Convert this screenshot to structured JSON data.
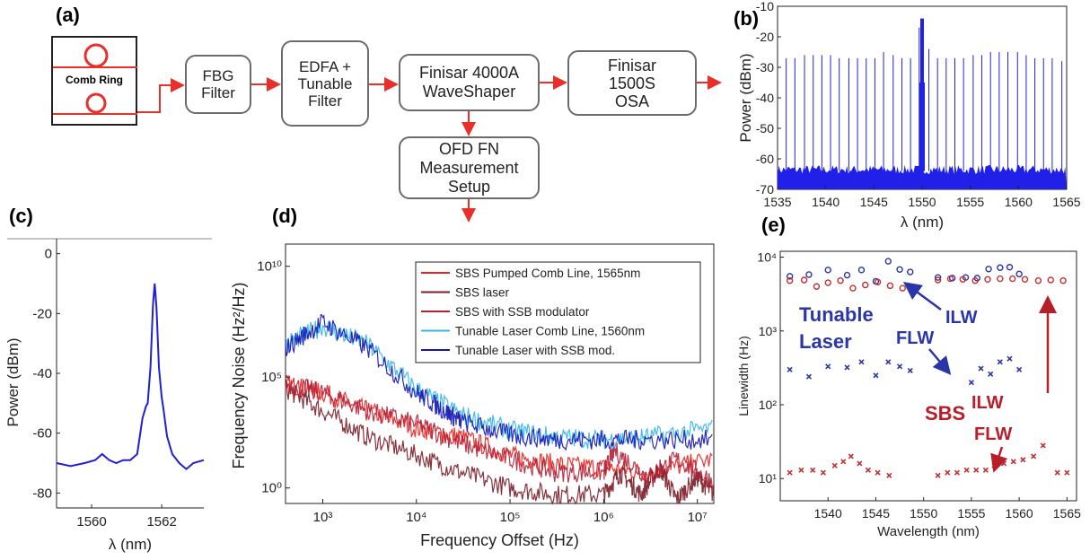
{
  "panel_labels": {
    "a": "(a)",
    "b": "(b)",
    "c": "(c)",
    "d": "(d)",
    "e": "(e)"
  },
  "diagram": {
    "comb_ring": "Comb Ring",
    "fbg": "FBG\nFilter",
    "edfa": "EDFA +\nTunable\nFilter",
    "waveshaper": "Finisar 4000A\nWaveShaper",
    "osa": "Finisar\n1500S\nOSA",
    "ofd": "OFD FN\nMeasurement\nSetup",
    "colors": {
      "arrow": "#e8302a",
      "ring": "#e8302a",
      "border": "#6b6b6b"
    }
  },
  "chart_data": [
    {
      "id": "b",
      "type": "line",
      "xlabel": "λ (nm)",
      "ylabel": "Power (dBm)",
      "xlim": [
        1535,
        1565
      ],
      "ylim": [
        -70,
        -10
      ],
      "xticks": [
        1535,
        1540,
        1545,
        1550,
        1555,
        1560,
        1565
      ],
      "yticks": [
        -70,
        -60,
        -50,
        -40,
        -30,
        -20,
        -10
      ],
      "noise_floor": -64,
      "center_line": {
        "x": 1550,
        "y": -14
      },
      "comb_lines_x": [
        1535.9,
        1536.8,
        1537.8,
        1538.7,
        1539.6,
        1540.5,
        1541.4,
        1542.4,
        1543.3,
        1544.2,
        1545.1,
        1546.0,
        1547.0,
        1547.9,
        1548.8,
        1549.7,
        1550.7,
        1551.6,
        1552.5,
        1553.4,
        1554.3,
        1555.3,
        1556.2,
        1557.1,
        1558.0,
        1558.9,
        1559.9,
        1560.8,
        1561.7,
        1562.6,
        1563.5,
        1564.5
      ],
      "comb_lines_y": [
        -27,
        -27,
        -26,
        -26,
        -26,
        -26,
        -27,
        -27,
        -27,
        -27,
        -27,
        -25,
        -26,
        -27,
        -27,
        -17,
        -24,
        -27,
        -27,
        -27,
        -27,
        -26,
        -26,
        -25,
        -25,
        -25,
        -25,
        -26,
        -27,
        -27,
        -27,
        -28
      ],
      "color": "#2020e8"
    },
    {
      "id": "c",
      "type": "line",
      "xlabel": "λ (nm)",
      "ylabel": "Power (dBm)",
      "xlim": [
        1559,
        1563.2
      ],
      "ylim": [
        -85,
        5
      ],
      "xticks": [
        1560,
        1562
      ],
      "yticks": [
        0,
        -20,
        -40,
        -60,
        -80
      ],
      "x": [
        1559.0,
        1559.4,
        1559.8,
        1560.1,
        1560.3,
        1560.5,
        1560.7,
        1560.9,
        1561.1,
        1561.3,
        1561.45,
        1561.55,
        1561.6,
        1561.68,
        1561.75,
        1561.8,
        1561.85,
        1561.92,
        1562.0,
        1562.05,
        1562.15,
        1562.3,
        1562.5,
        1562.7,
        1562.9,
        1563.2
      ],
      "y": [
        -70,
        -71,
        -70,
        -69,
        -67,
        -69,
        -70,
        -69,
        -69,
        -67,
        -55,
        -51,
        -50,
        -38,
        -17,
        -10,
        -18,
        -38,
        -48,
        -52,
        -61,
        -67,
        -70,
        -72,
        -70,
        -69
      ],
      "color": "#1f1fd6"
    },
    {
      "id": "d",
      "type": "line",
      "xlabel": "Frequency Offset (Hz)",
      "ylabel": "Frequency Noise (Hz²/Hz)",
      "xscale": "log",
      "yscale": "log",
      "xlim": [
        400,
        15000000
      ],
      "ylim": [
        0.2,
        100000000000.0
      ],
      "xticks": [
        "10³",
        "10⁴",
        "10⁵",
        "10⁶",
        "10⁷"
      ],
      "yticks": [
        "10⁰",
        "10⁵",
        "10¹⁰"
      ],
      "legend": "top-right",
      "series": [
        {
          "name": "SBS Pumped Comb Line, 1565nm",
          "color": "#e8201e",
          "x": [
            400,
            1000,
            3000,
            10000,
            30000,
            100000,
            300000,
            1000000,
            3000000,
            15000000
          ],
          "y": [
            50000,
            20000,
            3000,
            500,
            200,
            30,
            12,
            8,
            5,
            20
          ]
        },
        {
          "name": "SBS laser",
          "color": "#7a1c28",
          "x": [
            400,
            1000,
            3000,
            10000,
            30000,
            100000,
            300000,
            1000000,
            1500000,
            2500000,
            4000000,
            6000000,
            10000000,
            15000000
          ],
          "y": [
            30000,
            3000,
            200,
            30,
            5,
            1,
            0.5,
            0.5,
            5,
            0.5,
            8,
            0.3,
            3,
            0.5
          ]
        },
        {
          "name": "SBS with SSB modulator",
          "color": "#b22035",
          "x": [
            400,
            1000,
            3000,
            10000,
            30000,
            100000,
            300000,
            1000000,
            1300000,
            3000000,
            6000000,
            15000000
          ],
          "y": [
            50000,
            20000,
            3000,
            800,
            100,
            20,
            5,
            5,
            50,
            3,
            20,
            2
          ]
        },
        {
          "name": "Tunable Laser Comb Line, 1560nm",
          "color": "#33b5e8",
          "x": [
            400,
            1000,
            3000,
            10000,
            30000,
            100000,
            300000,
            1000000,
            3000000,
            15000000
          ],
          "y": [
            3000000,
            20000000,
            3000000,
            30000,
            2000,
            400,
            200,
            150,
            200,
            500
          ]
        },
        {
          "name": "Tunable Laser with SSB mod.",
          "color": "#1414b4",
          "x": [
            400,
            1000,
            3000,
            10000,
            20000,
            30000,
            100000,
            300000,
            1000000,
            3000000,
            15000000
          ],
          "y": [
            2000000,
            30000000,
            2000000,
            20000,
            3000,
            1000,
            250,
            150,
            150,
            150,
            150
          ]
        }
      ]
    },
    {
      "id": "e",
      "type": "scatter",
      "xlabel": "Wavelength (nm)",
      "ylabel": "Linewidth (Hz)",
      "yscale": "log",
      "xlim": [
        1535,
        1566
      ],
      "ylim": [
        5,
        12000
      ],
      "xticks": [
        1540,
        1545,
        1550,
        1555,
        1560,
        1565
      ],
      "yticks": [
        "10¹",
        "10²",
        "10³",
        "10⁴"
      ],
      "annotations": {
        "tunable": "Tunable\nLaser",
        "ilw_blue": "ILW",
        "flw_blue": "FLW",
        "sbs": "SBS",
        "flw_red": "FLW",
        "ilw_red": "ILW"
      },
      "series": [
        {
          "name": "Tunable ILW",
          "color": "#2a35a8",
          "marker": "o",
          "x": [
            1536,
            1538,
            1540,
            1542,
            1543.5,
            1545,
            1546.3,
            1547.5,
            1548.6,
            1551.5,
            1553,
            1554.4,
            1555.6,
            1556.8,
            1558,
            1559,
            1560
          ],
          "y": [
            5500,
            5800,
            6700,
            5700,
            6700,
            4700,
            8800,
            6800,
            6300,
            5300,
            5200,
            5300,
            5200,
            6900,
            7200,
            7300,
            5900
          ]
        },
        {
          "name": "SBS ILW",
          "color": "#c03030",
          "marker": "o",
          "x": [
            1536,
            1537.5,
            1538.8,
            1540,
            1541.3,
            1542.6,
            1543.9,
            1545.2,
            1546.5,
            1547.8,
            1549.1,
            1551.5,
            1552.8,
            1554.1,
            1555.4,
            1556.7,
            1558,
            1559.3,
            1560.6,
            1562,
            1563.3,
            1564.6
          ],
          "y": [
            4800,
            4900,
            4000,
            4500,
            4800,
            3800,
            4200,
            4600,
            4100,
            3800,
            3900,
            4900,
            5100,
            5000,
            4800,
            5000,
            5100,
            5100,
            5000,
            4800,
            4900,
            4800
          ]
        },
        {
          "name": "Tunable FLW",
          "color": "#2a35a8",
          "marker": "x",
          "x": [
            1536,
            1538,
            1540,
            1542,
            1543.5,
            1545,
            1546.3,
            1547.5,
            1548.6,
            1555,
            1556,
            1557,
            1558,
            1559,
            1560
          ],
          "y": [
            300,
            240,
            330,
            320,
            380,
            250,
            380,
            330,
            290,
            200,
            310,
            260,
            380,
            420,
            300
          ]
        },
        {
          "name": "SBS FLW",
          "color": "#c03030",
          "marker": "x",
          "x": [
            1536,
            1537.2,
            1538.4,
            1539.5,
            1540.7,
            1541.6,
            1542.4,
            1543.3,
            1544.2,
            1545.2,
            1546.4,
            1551.5,
            1552.5,
            1553.5,
            1554.5,
            1555.5,
            1556.5,
            1557.4,
            1558.4,
            1559.4,
            1560.4,
            1561.5,
            1562.5,
            1564,
            1565
          ],
          "y": [
            12,
            13,
            13,
            12,
            15,
            17,
            20,
            16,
            13,
            12,
            11,
            11,
            12,
            12,
            13,
            13,
            13,
            15,
            16,
            17,
            18,
            20,
            28,
            12,
            12
          ]
        }
      ]
    }
  ]
}
